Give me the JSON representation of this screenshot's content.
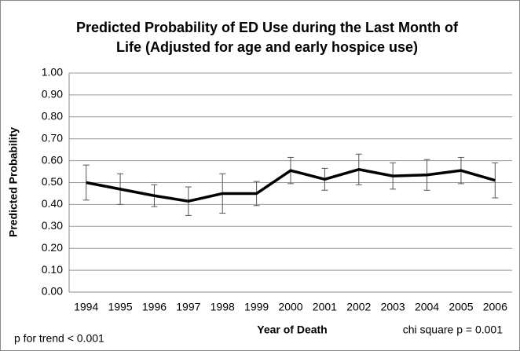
{
  "chart_data": {
    "type": "line",
    "title": [
      "Predicted Probability of ED Use during the Last Month of",
      "Life (Adjusted for age and early hospice use)"
    ],
    "x_label": "Year of Death",
    "y_label": "Predicted Probability",
    "annotations": [
      "p for trend < 0.001",
      "chi square p = 0.001"
    ],
    "categories": [
      "1994",
      "1995",
      "1996",
      "1997",
      "1998",
      "1999",
      "2000",
      "2001",
      "2002",
      "2003",
      "2004",
      "2005",
      "2006"
    ],
    "series": [
      {
        "name": "Predicted Probability",
        "color": "#000000",
        "values": [
          0.5,
          0.47,
          0.44,
          0.415,
          0.45,
          0.45,
          0.555,
          0.515,
          0.56,
          0.53,
          0.535,
          0.555,
          0.51
        ],
        "errors": [
          0.08,
          0.07,
          0.05,
          0.065,
          0.09,
          0.055,
          0.06,
          0.05,
          0.07,
          0.06,
          0.07,
          0.06,
          0.08
        ]
      }
    ],
    "ylim": [
      0,
      1
    ],
    "yticks": [
      {
        "value": 0,
        "label": "0.00"
      },
      {
        "value": 0.1,
        "label": "0.10"
      },
      {
        "value": 0.2,
        "label": "0.20"
      },
      {
        "value": 0.3,
        "label": "0.30"
      },
      {
        "value": 0.4,
        "label": "0.40"
      },
      {
        "value": 0.5,
        "label": "0.50"
      },
      {
        "value": 0.6,
        "label": "0.60"
      },
      {
        "value": 0.7,
        "label": "0.70"
      },
      {
        "value": 0.8,
        "label": "0.80"
      },
      {
        "value": 0.9,
        "label": "0.90"
      },
      {
        "value": 1,
        "label": "1.00"
      }
    ],
    "grid": true
  }
}
